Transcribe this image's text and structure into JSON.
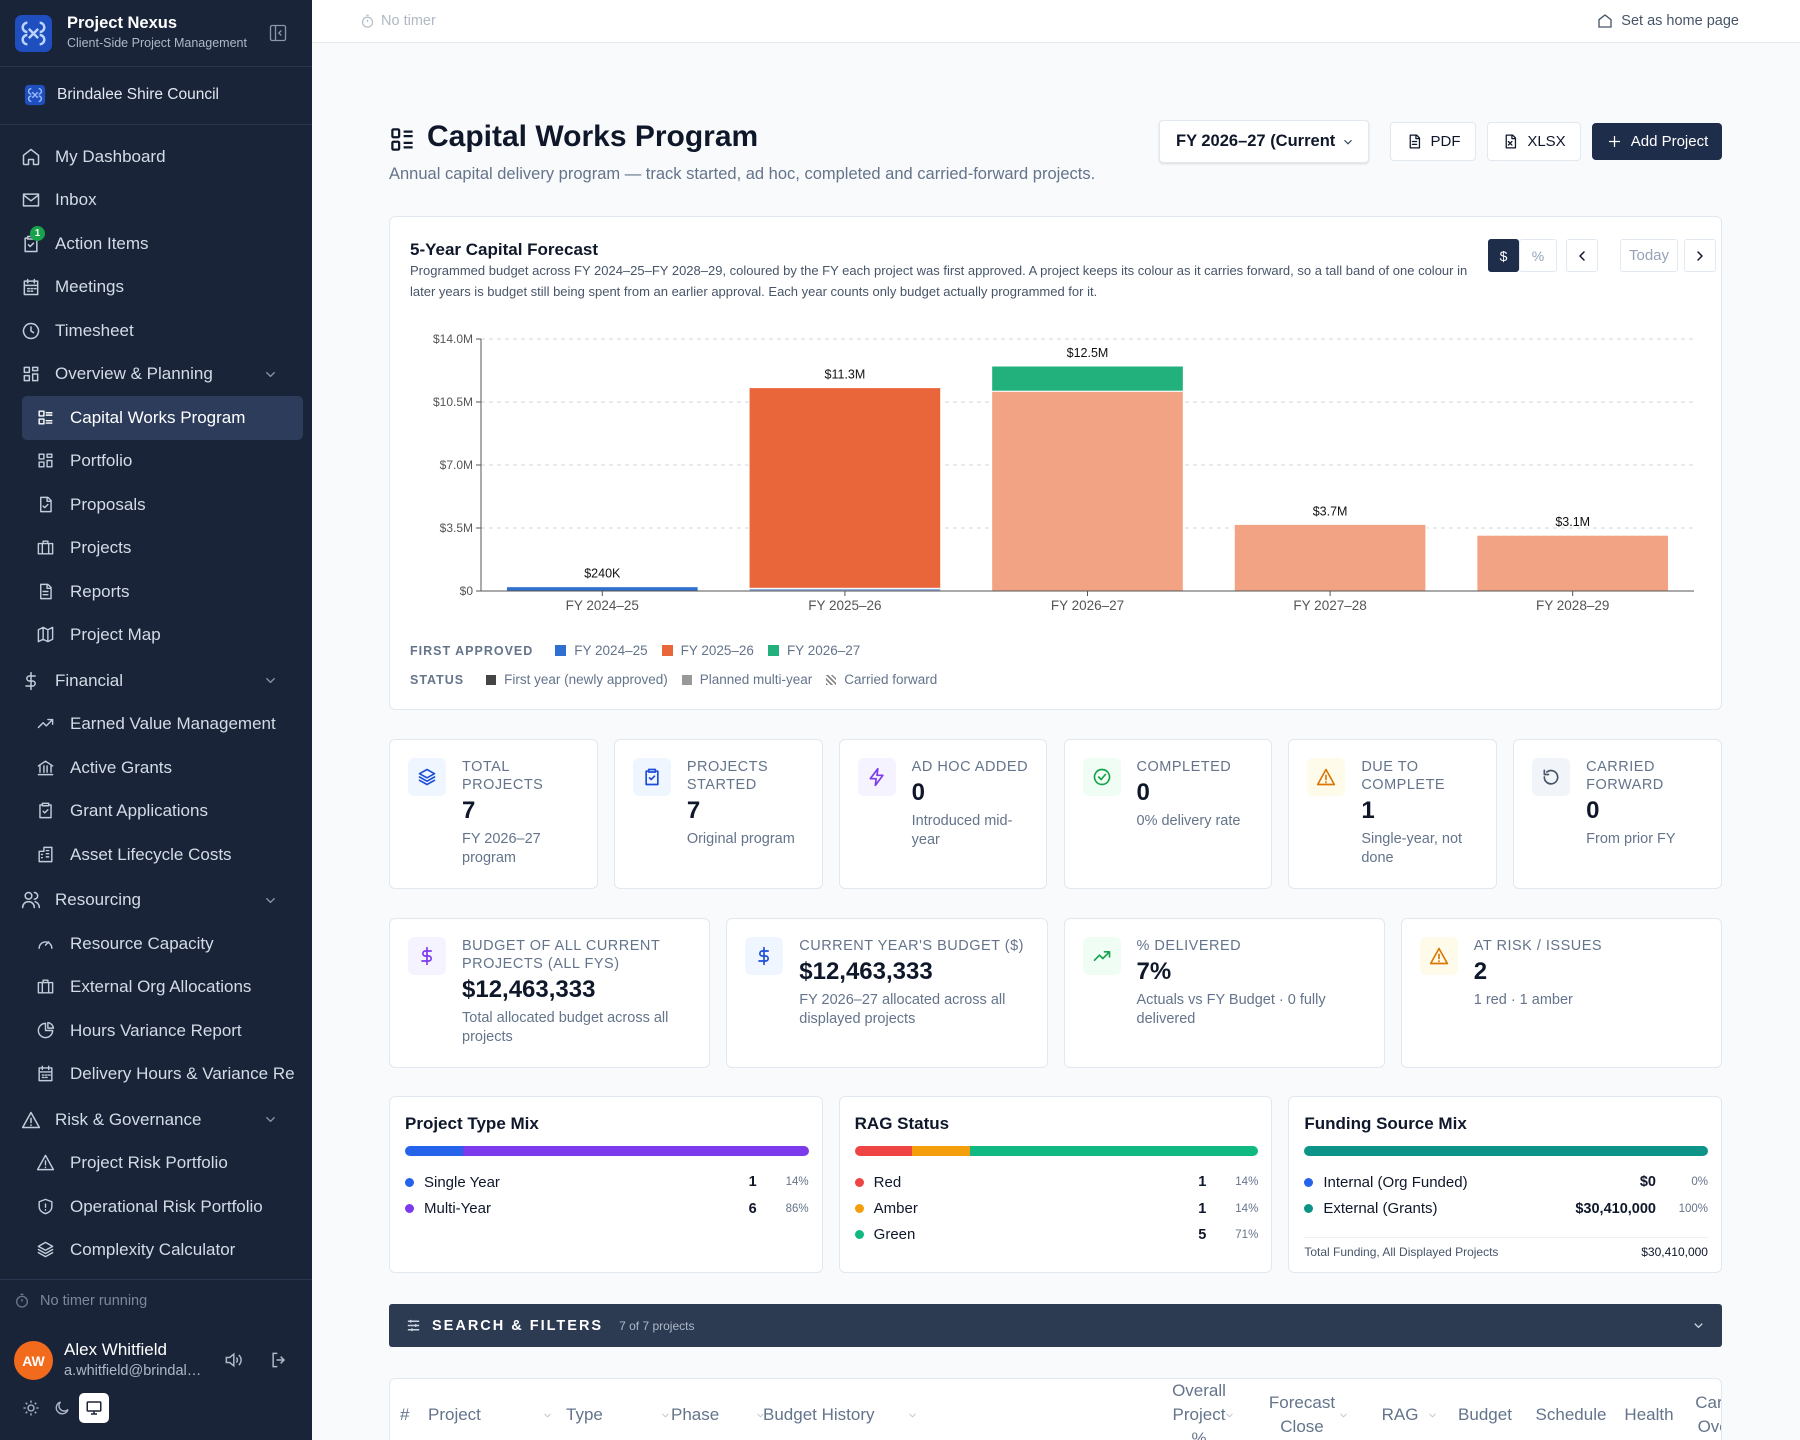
{
  "sidebar": {
    "app_name": "Project Nexus",
    "app_subtitle": "Client-Side Project Management",
    "org": "Brindalee Shire Council",
    "nav": [
      {
        "label": "My Dashboard"
      },
      {
        "label": "Inbox"
      },
      {
        "label": "Action Items",
        "badge": 1
      },
      {
        "label": "Meetings"
      },
      {
        "label": "Timesheet"
      }
    ],
    "groups": [
      {
        "label": "Overview & Planning",
        "items": [
          "Capital Works Program",
          "Portfolio",
          "Proposals",
          "Projects",
          "Reports",
          "Project Map"
        ]
      },
      {
        "label": "Financial",
        "items": [
          "Earned Value Management",
          "Active Grants",
          "Grant Applications",
          "Asset Lifecycle Costs"
        ]
      },
      {
        "label": "Resourcing",
        "items": [
          "Resource Capacity",
          "External Org Allocations",
          "Hours Variance Report",
          "Delivery Hours & Variance Re"
        ]
      },
      {
        "label": "Risk & Governance",
        "items": [
          "Project Risk Portfolio",
          "Operational Risk Portfolio",
          "Complexity Calculator"
        ]
      }
    ],
    "timer": "No timer running",
    "user": {
      "initials": "AW",
      "name": "Alex Whitfield",
      "email": "a.whitfield@brindal…"
    }
  },
  "topbar": {
    "timer": "No timer",
    "home": "Set as home page"
  },
  "header": {
    "title": "Capital Works Program",
    "subtitle": "Annual capital delivery program — track started, ad hoc, completed and carried-forward projects.",
    "fy": "FY 2026–27 (Current",
    "buttons": [
      "PDF",
      "XLSX",
      "Add Project"
    ]
  },
  "chart_data": {
    "type": "bar",
    "title": "5-Year Capital Forecast",
    "subtitle": "Programmed budget across FY 2024–25–FY 2028–29, coloured by the FY each project was first approved. A project keeps its colour as it carries forward, so a tall band of one colour in later years is budget still being spent from an earlier approval. Each year counts only budget actually programmed for it.",
    "controls": [
      "$",
      "%",
      "Today"
    ],
    "categories": [
      "FY 2024–25",
      "FY 2025–26",
      "FY 2026–27",
      "FY 2027–28",
      "FY 2028–29"
    ],
    "series": [
      {
        "name": "FY 2024–25",
        "color": "#2f6fd0",
        "values": [
          0.24,
          0.15,
          0,
          0,
          0
        ],
        "colors": [
          "#2f6fd0",
          "#8fb0e3",
          "#8fb0e3",
          "#8fb0e3",
          "#8fb0e3"
        ]
      },
      {
        "name": "FY 2025–26",
        "color": "#e8663a",
        "values": [
          0,
          11.15,
          11.1,
          3.7,
          3.1
        ],
        "colors": [
          "#e8663a",
          "#e8663a",
          "#f2a383",
          "#f2a383",
          "#f2a383"
        ]
      },
      {
        "name": "FY 2026–27",
        "color": "#22b07d",
        "values": [
          0,
          0,
          1.4,
          0,
          0
        ],
        "colors": [
          "#22b07d",
          "#22b07d",
          "#22b07d",
          "#7fd3b2",
          "#7fd3b2"
        ]
      }
    ],
    "total_labels": [
      "$240K",
      "$11.3M",
      "$12.5M",
      "$3.7M",
      "$3.1M"
    ],
    "ylim": [
      0,
      14
    ],
    "yticks": [
      {
        "value": 0,
        "label": "$0"
      },
      {
        "value": 3.5,
        "label": "$3.5M"
      },
      {
        "value": 7,
        "label": "$7.0M"
      },
      {
        "value": 10.5,
        "label": "$10.5M"
      },
      {
        "value": 14,
        "label": "$14.0M"
      }
    ],
    "grid": true,
    "legend_title": "FIRST APPROVED",
    "status_title": "STATUS",
    "statuses": [
      "First year (newly approved)",
      "Planned multi-year",
      "Carried forward"
    ]
  },
  "kpis": [
    {
      "label": "TOTAL PROJECTS",
      "value": 7,
      "note": "FY 2026–27 program"
    },
    {
      "label": "PROJECTS STARTED",
      "value": 7,
      "note": "Original program"
    },
    {
      "label": "AD HOC ADDED",
      "value": 0,
      "note": "Introduced mid-year"
    },
    {
      "label": "COMPLETED",
      "value": 0,
      "note": "0% delivery rate"
    },
    {
      "label": "DUE TO COMPLETE",
      "value": 1,
      "note": "Single-year, not done"
    },
    {
      "label": "CARRIED FORWARD",
      "value": 0,
      "note": "From prior FY"
    }
  ],
  "budget_kpis": [
    {
      "label": "BUDGET OF ALL CURRENT PROJECTS (ALL FYS)",
      "value": "$12,463,333",
      "note": "Total allocated budget across all projects"
    },
    {
      "label": "CURRENT YEAR'S BUDGET ($)",
      "value": "$12,463,333",
      "note": "FY 2026–27 allocated across all displayed projects"
    },
    {
      "label": "% DELIVERED",
      "value": "7%",
      "note": "Actuals vs FY Budget · 0 fully delivered"
    },
    {
      "label": "AT RISK / ISSUES",
      "value": 2,
      "note": "1 red · 1 amber"
    }
  ],
  "mix": [
    {
      "title": "Project Type Mix",
      "items": [
        {
          "name": "Single Year",
          "count": 1,
          "share": "14%",
          "color": "#2563eb"
        },
        {
          "name": "Multi-Year",
          "count": 6,
          "share": "86%",
          "color": "#7c3aed"
        }
      ]
    },
    {
      "title": "RAG Status",
      "items": [
        {
          "name": "Red",
          "count": 1,
          "share": "14%",
          "color": "#ef4444"
        },
        {
          "name": "Amber",
          "count": 1,
          "share": "14%",
          "color": "#f59e0b"
        },
        {
          "name": "Green",
          "count": 5,
          "share": "71%",
          "color": "#10b981"
        }
      ]
    },
    {
      "title": "Funding Source Mix",
      "items": [
        {
          "name": "Internal (Org Funded)",
          "amount": {
            "value": 0,
            "label": "$0"
          },
          "share": "0%",
          "color": "#2563eb"
        },
        {
          "name": "External (Grants)",
          "amount": {
            "value": 30410000,
            "label": "$30,410,000"
          },
          "share": "100%",
          "color": "#0d9488"
        }
      ],
      "total": {
        "label": "Total Funding, All Displayed Projects",
        "amount": "$30,410,000"
      }
    }
  ],
  "filters": {
    "title": "SEARCH & FILTERS",
    "count": "7 of 7 projects"
  },
  "table": {
    "columns": [
      "#",
      "Project",
      "Type",
      "Phase",
      "Budget History",
      "Overall Project %",
      "Forecast Close",
      "RAG",
      "Budget",
      "Schedule",
      "Health",
      "Carry Over"
    ]
  }
}
